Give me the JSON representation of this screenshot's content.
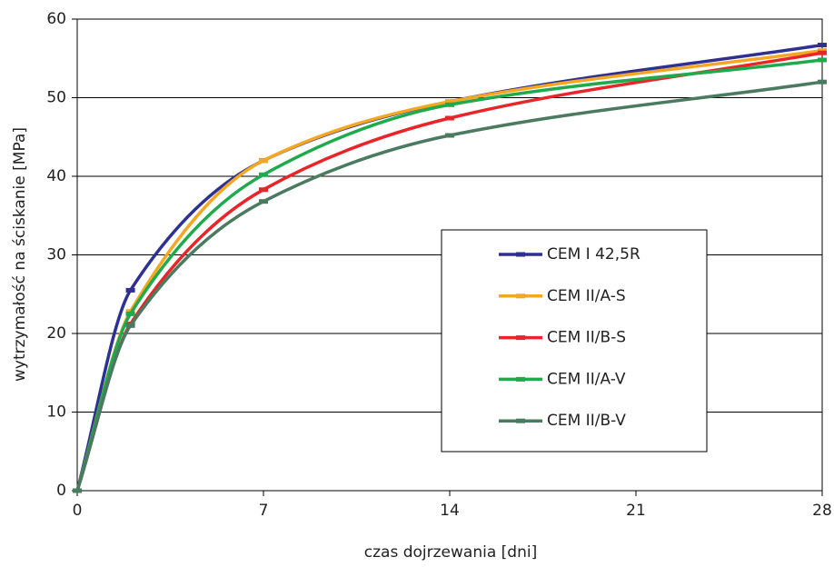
{
  "chart_data": {
    "type": "line",
    "xlabel": "czas dojrzewania [dni]",
    "ylabel": "wytrzymałość na ściskanie [MPa]",
    "x": [
      0,
      2,
      7,
      14,
      28
    ],
    "series": [
      {
        "name": "CEM I 42,5R",
        "color": "#2e3192",
        "values": [
          0,
          25.5,
          42,
          49.5,
          56.7
        ]
      },
      {
        "name": "CEM II/A-S",
        "color": "#f5a623",
        "values": [
          0,
          22.8,
          42,
          49.5,
          56.0
        ]
      },
      {
        "name": "CEM II/B-S",
        "color": "#e8262a",
        "values": [
          0,
          21.2,
          38.3,
          47.4,
          55.7
        ]
      },
      {
        "name": "CEM II/A-V",
        "color": "#1faa4b",
        "values": [
          0,
          22.5,
          40.2,
          49.1,
          54.8
        ]
      },
      {
        "name": "CEM II/B-V",
        "color": "#4a7a5f",
        "values": [
          0,
          21,
          36.8,
          45.2,
          52
        ]
      }
    ],
    "xlim": [
      0,
      28
    ],
    "xticks": [
      0,
      7,
      14,
      21,
      28
    ],
    "ylim": [
      0,
      60
    ],
    "yticks": [
      0,
      10,
      20,
      30,
      40,
      50,
      60
    ],
    "grid": true,
    "legend": "center-right"
  }
}
